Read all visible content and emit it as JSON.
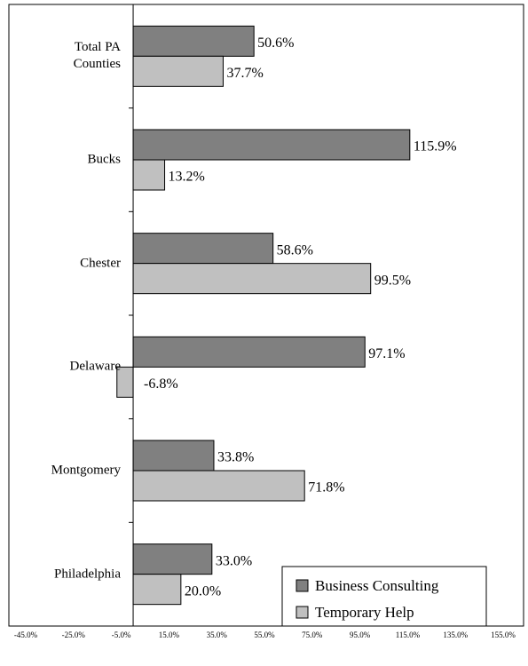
{
  "chart_data": {
    "type": "barh",
    "categories": [
      "Total PA Counties",
      "Bucks",
      "Chester",
      "Delaware",
      "Montgomery",
      "Philadelphia"
    ],
    "series": [
      {
        "name": "Business Consulting",
        "color": "#808080",
        "values": [
          50.6,
          115.9,
          58.6,
          97.1,
          33.8,
          33.0
        ],
        "value_labels": [
          "50.6%",
          "115.9%",
          "58.6%",
          "97.1%",
          "33.8%",
          "33.0%"
        ]
      },
      {
        "name": "Temporary Help",
        "color": "#c0c0c0",
        "values": [
          37.7,
          13.2,
          99.5,
          -6.8,
          71.8,
          20.0
        ],
        "value_labels": [
          "37.7%",
          "13.2%",
          "99.5%",
          "-6.8%",
          "71.8%",
          "20.0%"
        ]
      }
    ],
    "xlim": [
      -45,
      155
    ],
    "xticks": [
      {
        "value": -45,
        "label": "-45.0%"
      },
      {
        "value": -25,
        "label": "-25.0%"
      },
      {
        "value": -5,
        "label": "-5.0%"
      },
      {
        "value": 15,
        "label": "15.0%"
      },
      {
        "value": 35,
        "label": "35.0%"
      },
      {
        "value": 55,
        "label": "55.0%"
      },
      {
        "value": 75,
        "label": "75.0%"
      },
      {
        "value": 95,
        "label": "95.0%"
      },
      {
        "value": 115,
        "label": "115.0%"
      },
      {
        "value": 135,
        "label": "135.0%"
      },
      {
        "value": 155,
        "label": "155.0%"
      }
    ],
    "legend": "lower right"
  }
}
